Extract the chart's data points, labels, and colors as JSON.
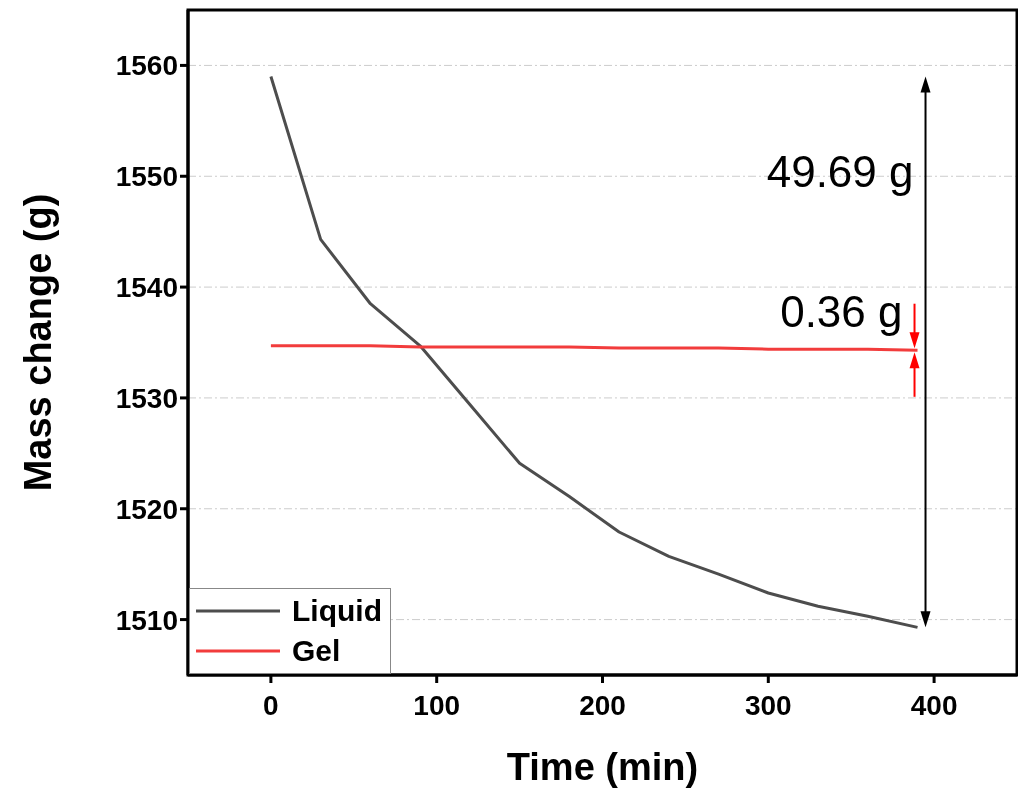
{
  "chart_data": {
    "type": "line",
    "xlabel": "Time (min)",
    "ylabel": "Mass change (g)",
    "x": [
      0,
      30,
      60,
      90,
      120,
      150,
      180,
      210,
      240,
      270,
      300,
      330,
      360,
      390
    ],
    "series": [
      {
        "name": "Liquid",
        "color": "#4d4d4d",
        "values": [
          1559.0,
          1544.3,
          1538.5,
          1534.7,
          1529.4,
          1524.1,
          1521.1,
          1517.9,
          1515.7,
          1514.1,
          1512.4,
          1511.2,
          1510.3,
          1509.3
        ]
      },
      {
        "name": "Gel",
        "color": "#f23c3c",
        "values": [
          1534.7,
          1534.7,
          1534.7,
          1534.6,
          1534.6,
          1534.6,
          1534.6,
          1534.5,
          1534.5,
          1534.5,
          1534.4,
          1534.4,
          1534.4,
          1534.3
        ]
      }
    ],
    "xlim": [
      -50,
      450
    ],
    "xticks": [
      0,
      100,
      200,
      300,
      400
    ],
    "ylim": [
      1505,
      1565
    ],
    "yticks": [
      1510,
      1520,
      1530,
      1540,
      1550,
      1560
    ],
    "grid": "y",
    "legend": "bottom left",
    "marker": "none",
    "line_style": "solid",
    "annotations": [
      "49.69 g",
      "0.36 g"
    ]
  }
}
